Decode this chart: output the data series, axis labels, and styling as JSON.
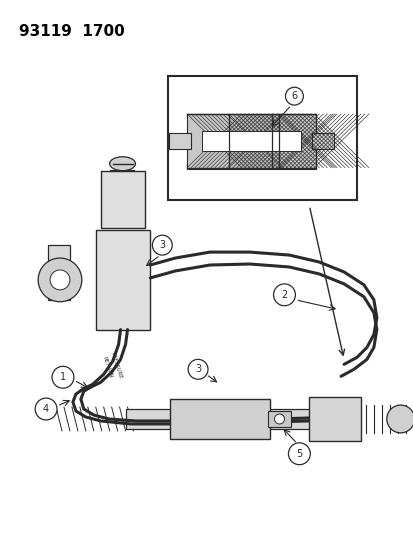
{
  "background_color": "#ffffff",
  "line_color": "#2a2a2a",
  "label_color": "#000000",
  "fig_width": 4.14,
  "fig_height": 5.33,
  "dpi": 100,
  "header_text": "93119  1700"
}
